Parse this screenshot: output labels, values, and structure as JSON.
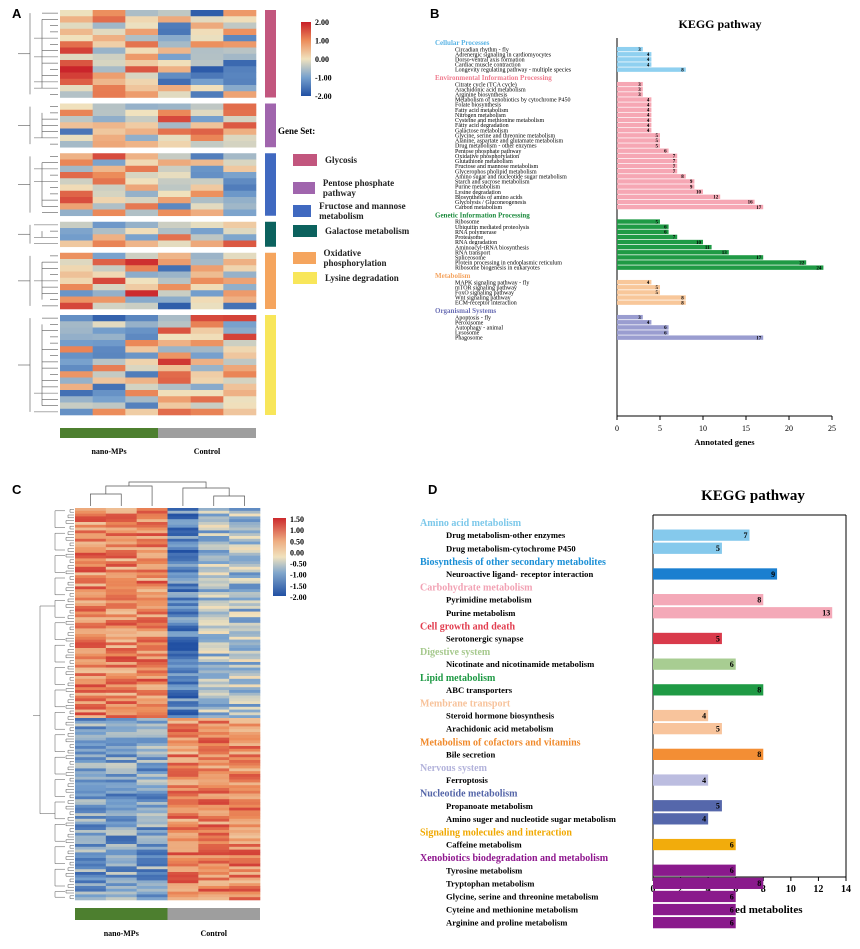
{
  "panels": {
    "a": "A",
    "b": "B",
    "c": "C",
    "d": "D"
  },
  "panel_a": {
    "gene_set_title": "Gene Set:",
    "scale_labels": [
      "2.00",
      "1.00",
      "0.00",
      "-1.00",
      "-2.00"
    ],
    "gene_sets": [
      {
        "name": "Glycosis",
        "color": "#c2567e",
        "rows": 14
      },
      {
        "name": "Pentose phosphate pathway",
        "color": "#a065ad",
        "rows": 7
      },
      {
        "name": "Fructose and mannose metabolism",
        "color": "#4069c0",
        "rows": 10
      },
      {
        "name": "Galactose metabolism",
        "color": "#0c625e",
        "rows": 4
      },
      {
        "name": "Oxidative phosphorylation",
        "color": "#f5a55e",
        "rows": 9
      },
      {
        "name": "Lysine degradation",
        "color": "#f8e65a",
        "rows": 16
      }
    ],
    "groups": [
      {
        "label": "nano-MPs",
        "color": "#4d7f2f"
      },
      {
        "label": "Control",
        "color": "#9e9e9e"
      }
    ]
  },
  "panel_c": {
    "scale_labels": [
      "1.50",
      "1.00",
      "0.50",
      "0.00",
      "-0.50",
      "-1.00",
      "-1.50",
      "-2.00"
    ],
    "groups": [
      {
        "label": "nano-MPs",
        "color": "#4d7f2f"
      },
      {
        "label": "Control",
        "color": "#9e9e9e"
      }
    ]
  },
  "chart_data": [
    {
      "type": "bar",
      "orientation": "horizontal",
      "title": "KEGG pathway",
      "xlabel": "Annotated genes",
      "xlim": [
        0,
        25
      ],
      "xticks": [
        0,
        5,
        10,
        15,
        20,
        25
      ],
      "groups": [
        {
          "name": "Cellular Processes",
          "color": "#5ab4e5",
          "bar_color": "#8fd0f0",
          "items": [
            {
              "label": "Circadian rhythm - fly",
              "value": 3
            },
            {
              "label": "Adrenergic signaling in cardiomyocytes",
              "value": 4
            },
            {
              "label": "Dorso-ventral axis formation",
              "value": 4
            },
            {
              "label": "Cardiac muscle contraction",
              "value": 4
            },
            {
              "label": "Longevity regulating pathway - multiple species",
              "value": 8
            }
          ]
        },
        {
          "name": "Environmental Information Processing",
          "color": "#f07c8f",
          "bar_color": "#f6a7b4",
          "items": [
            {
              "label": "Citrate cycle (TCA cycle)",
              "value": 3
            },
            {
              "label": "Arachidonic acid metabolism",
              "value": 3
            },
            {
              "label": "Arginine biosynthesis",
              "value": 3
            },
            {
              "label": "Metabolism of xenobiotics by cytochrome P450",
              "value": 4
            },
            {
              "label": "Folate biosynthesis",
              "value": 4
            },
            {
              "label": "Fatty acid metabolism",
              "value": 4
            },
            {
              "label": "Nitrogen metabolism",
              "value": 4
            },
            {
              "label": "Cysteine and methionine metabolism",
              "value": 4
            },
            {
              "label": "Fatty acid degradation",
              "value": 4
            },
            {
              "label": "Galactose metabolism",
              "value": 4
            },
            {
              "label": "Glycine, serine and threonine metabolism",
              "value": 5
            },
            {
              "label": "Alanine, aspartate and glutamate metabolism",
              "value": 5
            },
            {
              "label": "Drug metabolism - other enzymes",
              "value": 5
            },
            {
              "label": "Pentose phosphate pathway",
              "value": 6
            },
            {
              "label": "Oxidative phosphorylation",
              "value": 7
            },
            {
              "label": "Glutathione metabolism",
              "value": 7
            },
            {
              "label": "Fructose and mannose metabolism",
              "value": 7
            },
            {
              "label": "Glycerophos pholipid metabolism",
              "value": 7
            },
            {
              "label": "Amino sugar and nucleotide sugar metabolism",
              "value": 8
            },
            {
              "label": "Starch and sucrose metabolism",
              "value": 9
            },
            {
              "label": "Purine metabolism",
              "value": 9
            },
            {
              "label": "Lysine degradation",
              "value": 10
            },
            {
              "label": "Biosynthesis of amino acids",
              "value": 12
            },
            {
              "label": "Glycolysis / Gluconeogenesis",
              "value": 16
            },
            {
              "label": "Carbon metabolism",
              "value": 17
            }
          ]
        },
        {
          "name": "Genetic Information Processing",
          "color": "#1b8a3c",
          "bar_color": "#1f9a45",
          "items": [
            {
              "label": "Ribosome",
              "value": 5
            },
            {
              "label": "Ubiquitin mediated proteolysis",
              "value": 6
            },
            {
              "label": "RNA polymerase",
              "value": 6
            },
            {
              "label": "Proteasome",
              "value": 7
            },
            {
              "label": "RNA degradation",
              "value": 10
            },
            {
              "label": "Aminoacyl-tRNA biosynthesis",
              "value": 11
            },
            {
              "label": "RNA transport",
              "value": 13
            },
            {
              "label": "Spliceosome",
              "value": 17
            },
            {
              "label": "Protein processing in endoplasmic reticulum",
              "value": 22
            },
            {
              "label": "Ribosome biogenesis in eukaryotes",
              "value": 24
            }
          ]
        },
        {
          "name": "Metabolism",
          "color": "#f4a460",
          "bar_color": "#f8c79a",
          "items": [
            {
              "label": "MAPK signaling pathway - fly",
              "value": 4
            },
            {
              "label": "mTOR signaling pathway",
              "value": 5
            },
            {
              "label": "FoxO signaling pathway",
              "value": 5
            },
            {
              "label": "Wnt signaling pathway",
              "value": 8
            },
            {
              "label": "ECM-receptor interaction",
              "value": 8
            }
          ]
        },
        {
          "name": "Organismal Systems",
          "color": "#6b6fb5",
          "bar_color": "#9a9dd0",
          "items": [
            {
              "label": "Apoptosis - fly",
              "value": 3
            },
            {
              "label": "Peroxisome",
              "value": 4
            },
            {
              "label": "Autophagy - animal",
              "value": 6
            },
            {
              "label": "Lysosome",
              "value": 6
            },
            {
              "label": "Phagosome",
              "value": 17
            }
          ]
        }
      ]
    },
    {
      "type": "bar",
      "orientation": "horizontal",
      "title": "KEGG pathway",
      "xlabel": "Annotated metabolites",
      "xlim": [
        0,
        14
      ],
      "xticks": [
        0,
        2,
        4,
        6,
        8,
        10,
        12,
        14
      ],
      "groups": [
        {
          "name": "Amino acid metabolism",
          "color": "#7cc8ea",
          "bar_color": "#85c9ec",
          "items": [
            {
              "label": "Drug metabolism-other enzymes",
              "value": 7
            },
            {
              "label": "Drug metabolism-cytochrome P450",
              "value": 5
            }
          ]
        },
        {
          "name": "Biosynthesis of other secondary metabolites",
          "color": "#1a8fd6",
          "bar_color": "#1b7fd0",
          "items": [
            {
              "label": "Neuroactive ligand- receptor interaction",
              "value": 9
            }
          ]
        },
        {
          "name": "Carbohydrate metabolism",
          "color": "#f2a2b4",
          "bar_color": "#f4a9b8",
          "items": [
            {
              "label": "Pyrimidine metabolism",
              "value": 8
            },
            {
              "label": "Purine metabolism",
              "value": 13
            }
          ]
        },
        {
          "name": "Cell growth and death",
          "color": "#e23d4f",
          "bar_color": "#d93a4b",
          "items": [
            {
              "label": "Serotonergic synapse",
              "value": 5
            }
          ]
        },
        {
          "name": "Digestive system",
          "color": "#a6c98d",
          "bar_color": "#a8cd92",
          "items": [
            {
              "label": "Nicotinate and nicotinamide metabolism",
              "value": 6
            }
          ]
        },
        {
          "name": "Lipid metabolism",
          "color": "#1f9a45",
          "bar_color": "#1f9a45",
          "items": [
            {
              "label": "ABC transporters",
              "value": 8
            }
          ]
        },
        {
          "name": "Membrane transport",
          "color": "#f7c29a",
          "bar_color": "#f8c49c",
          "items": [
            {
              "label": "Steroid hormone biosynthesis",
              "value": 4
            },
            {
              "label": "Arachidonic acid metabolism",
              "value": 5
            }
          ]
        },
        {
          "name": "Metabolism of cofactors and vitamins",
          "color": "#f08a2c",
          "bar_color": "#f38e34",
          "items": [
            {
              "label": "Bile secretion",
              "value": 8
            }
          ]
        },
        {
          "name": "Nervous system",
          "color": "#b3b3db",
          "bar_color": "#bcbde0",
          "items": [
            {
              "label": "Ferroptosis",
              "value": 4
            }
          ]
        },
        {
          "name": "Nucleotide metabolism",
          "color": "#5465a8",
          "bar_color": "#5567ab",
          "items": [
            {
              "label": "Propanoate metabolism",
              "value": 5
            },
            {
              "label": "Amino suger and nucleotide sugar metabolism",
              "value": 4
            }
          ]
        },
        {
          "name": "Signaling molecules and interaction",
          "color": "#f0a800",
          "bar_color": "#f2ac0c",
          "items": [
            {
              "label": "Caffeine metabolism",
              "value": 6
            }
          ]
        },
        {
          "name": "Xenobiotics biodegradation and metabolism",
          "color": "#8e168e",
          "bar_color": "#8a1a8c",
          "items": [
            {
              "label": "Tyrosine metabolism",
              "value": 6
            },
            {
              "label": "Tryptophan metabolism",
              "value": 8
            },
            {
              "label": "Glycine, serine and threonine metabolism",
              "value": 6
            },
            {
              "label": "Cyteine and methionine metabolism",
              "value": 6
            },
            {
              "label": "Arginine and proline metabolism",
              "value": 6
            }
          ]
        }
      ]
    }
  ]
}
